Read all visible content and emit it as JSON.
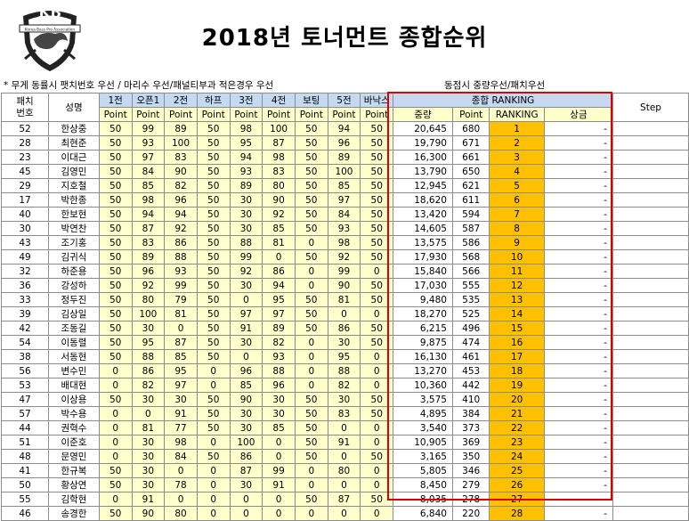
{
  "logo": {
    "text": "KB",
    "subtext": "Korea Bass Pro Association"
  },
  "title": "2018년 토너먼트 종합순위",
  "notes": {
    "left": "* 무게 동률시 팻치번호 우선 / 마리수 우선/패널티부과 적은경우 우선",
    "right": "동점시 중량우선/패치우선"
  },
  "headers": {
    "patch_no": "패치\n번호",
    "name": "성명",
    "events": [
      "1전",
      "오픈1",
      "2전",
      "하프",
      "3전",
      "4전",
      "보팅",
      "5전",
      "바낙스"
    ],
    "point": "Point",
    "ranking_group": "종합 RANKING",
    "weight": "중량",
    "ranking": "RANKING",
    "prize": "상금",
    "step": "Step"
  },
  "colors": {
    "header_blue": "#c5d9f1",
    "cell_yellow": "#ffffcc",
    "rank_orange": "#ffc000",
    "highlight_box": "#e00000"
  },
  "rows": [
    {
      "no": "52",
      "name": "한상중",
      "pts": [
        "50",
        "99",
        "89",
        "50",
        "98",
        "100",
        "50",
        "94",
        "50"
      ],
      "weight": "20,645",
      "point": "680",
      "rank": "1",
      "prize": "-"
    },
    {
      "no": "28",
      "name": "최현준",
      "pts": [
        "50",
        "93",
        "100",
        "50",
        "95",
        "87",
        "50",
        "96",
        "50"
      ],
      "weight": "19,790",
      "point": "671",
      "rank": "2",
      "prize": "-"
    },
    {
      "no": "23",
      "name": "이대근",
      "pts": [
        "50",
        "97",
        "83",
        "50",
        "94",
        "98",
        "50",
        "89",
        "50"
      ],
      "weight": "16,300",
      "point": "661",
      "rank": "3",
      "prize": "-"
    },
    {
      "no": "45",
      "name": "김영민",
      "pts": [
        "50",
        "84",
        "90",
        "50",
        "93",
        "83",
        "50",
        "100",
        "50"
      ],
      "weight": "13,790",
      "point": "650",
      "rank": "4",
      "prize": "-"
    },
    {
      "no": "29",
      "name": "지호철",
      "pts": [
        "50",
        "85",
        "82",
        "50",
        "89",
        "80",
        "50",
        "85",
        "50"
      ],
      "weight": "12,945",
      "point": "621",
      "rank": "5",
      "prize": "-"
    },
    {
      "no": "17",
      "name": "박한종",
      "pts": [
        "50",
        "98",
        "96",
        "50",
        "30",
        "90",
        "50",
        "97",
        "50"
      ],
      "weight": "18,620",
      "point": "611",
      "rank": "6",
      "prize": "-"
    },
    {
      "no": "40",
      "name": "한보현",
      "pts": [
        "50",
        "94",
        "94",
        "50",
        "30",
        "92",
        "50",
        "84",
        "50"
      ],
      "weight": "13,420",
      "point": "594",
      "rank": "7",
      "prize": "-"
    },
    {
      "no": "30",
      "name": "박연찬",
      "pts": [
        "50",
        "87",
        "92",
        "50",
        "30",
        "85",
        "50",
        "93",
        "50"
      ],
      "weight": "14,605",
      "point": "587",
      "rank": "8",
      "prize": "-"
    },
    {
      "no": "43",
      "name": "조기홍",
      "pts": [
        "50",
        "83",
        "86",
        "50",
        "88",
        "81",
        "0",
        "98",
        "50"
      ],
      "weight": "13,575",
      "point": "586",
      "rank": "9",
      "prize": "-"
    },
    {
      "no": "49",
      "name": "김귀식",
      "pts": [
        "50",
        "89",
        "88",
        "50",
        "99",
        "0",
        "50",
        "92",
        "50"
      ],
      "weight": "17,930",
      "point": "568",
      "rank": "10",
      "prize": "-"
    },
    {
      "no": "32",
      "name": "하준용",
      "pts": [
        "50",
        "96",
        "93",
        "50",
        "92",
        "86",
        "0",
        "99",
        "0"
      ],
      "weight": "15,840",
      "point": "566",
      "rank": "11",
      "prize": "-"
    },
    {
      "no": "36",
      "name": "강성하",
      "pts": [
        "50",
        "92",
        "99",
        "50",
        "30",
        "94",
        "0",
        "90",
        "50"
      ],
      "weight": "17,030",
      "point": "555",
      "rank": "12",
      "prize": "-"
    },
    {
      "no": "33",
      "name": "정두진",
      "pts": [
        "50",
        "80",
        "79",
        "50",
        "0",
        "95",
        "50",
        "81",
        "50"
      ],
      "weight": "9,480",
      "point": "535",
      "rank": "13",
      "prize": "-"
    },
    {
      "no": "39",
      "name": "김상일",
      "pts": [
        "50",
        "100",
        "81",
        "50",
        "97",
        "97",
        "50",
        "0",
        "0"
      ],
      "weight": "18,270",
      "point": "525",
      "rank": "14",
      "prize": "-"
    },
    {
      "no": "42",
      "name": "조동길",
      "pts": [
        "50",
        "30",
        "0",
        "50",
        "91",
        "89",
        "50",
        "86",
        "50"
      ],
      "weight": "6,215",
      "point": "496",
      "rank": "15",
      "prize": "-"
    },
    {
      "no": "54",
      "name": "이동렬",
      "pts": [
        "50",
        "95",
        "87",
        "50",
        "30",
        "82",
        "0",
        "30",
        "50"
      ],
      "weight": "9,875",
      "point": "474",
      "rank": "16",
      "prize": "-"
    },
    {
      "no": "38",
      "name": "서동현",
      "pts": [
        "50",
        "88",
        "85",
        "50",
        "0",
        "93",
        "0",
        "95",
        "0"
      ],
      "weight": "16,130",
      "point": "461",
      "rank": "17",
      "prize": "-"
    },
    {
      "no": "56",
      "name": "변수민",
      "pts": [
        "0",
        "86",
        "95",
        "0",
        "96",
        "88",
        "0",
        "88",
        "0"
      ],
      "weight": "13,270",
      "point": "453",
      "rank": "18",
      "prize": "-"
    },
    {
      "no": "53",
      "name": "배대현",
      "pts": [
        "0",
        "82",
        "97",
        "0",
        "85",
        "96",
        "0",
        "82",
        "0"
      ],
      "weight": "10,360",
      "point": "442",
      "rank": "19",
      "prize": "-"
    },
    {
      "no": "47",
      "name": "이상용",
      "pts": [
        "50",
        "30",
        "30",
        "50",
        "90",
        "30",
        "50",
        "30",
        "50"
      ],
      "weight": "3,575",
      "point": "410",
      "rank": "20",
      "prize": "-"
    },
    {
      "no": "57",
      "name": "박수용",
      "pts": [
        "0",
        "0",
        "91",
        "50",
        "30",
        "30",
        "50",
        "83",
        "50"
      ],
      "weight": "4,895",
      "point": "384",
      "rank": "21",
      "prize": "-"
    },
    {
      "no": "44",
      "name": "권혁수",
      "pts": [
        "0",
        "81",
        "77",
        "50",
        "30",
        "85",
        "50",
        "0",
        "0"
      ],
      "weight": "3,540",
      "point": "373",
      "rank": "22",
      "prize": "-"
    },
    {
      "no": "51",
      "name": "이준호",
      "pts": [
        "0",
        "30",
        "98",
        "0",
        "100",
        "0",
        "50",
        "91",
        "0"
      ],
      "weight": "10,905",
      "point": "369",
      "rank": "23",
      "prize": "-"
    },
    {
      "no": "48",
      "name": "문영민",
      "pts": [
        "0",
        "30",
        "84",
        "50",
        "86",
        "0",
        "50",
        "0",
        "50"
      ],
      "weight": "3,165",
      "point": "350",
      "rank": "24",
      "prize": "-"
    },
    {
      "no": "41",
      "name": "한규복",
      "pts": [
        "50",
        "30",
        "0",
        "0",
        "87",
        "99",
        "0",
        "80",
        "0"
      ],
      "weight": "5,805",
      "point": "346",
      "rank": "25",
      "prize": "-"
    },
    {
      "no": "50",
      "name": "황상연",
      "pts": [
        "50",
        "30",
        "78",
        "0",
        "30",
        "91",
        "0",
        "0",
        "0"
      ],
      "weight": "8,450",
      "point": "279",
      "rank": "26",
      "prize": "-"
    },
    {
      "no": "55",
      "name": "김학현",
      "pts": [
        "0",
        "91",
        "0",
        "0",
        "0",
        "0",
        "50",
        "87",
        "50"
      ],
      "weight": "8,035",
      "point": "278",
      "rank": "27",
      "prize": "-"
    },
    {
      "no": "46",
      "name": "송경한",
      "pts": [
        "50",
        "90",
        "80",
        "0",
        "0",
        "0",
        "0",
        "0",
        "0"
      ],
      "weight": "6,840",
      "point": "220",
      "rank": "28",
      "prize": "-"
    }
  ]
}
